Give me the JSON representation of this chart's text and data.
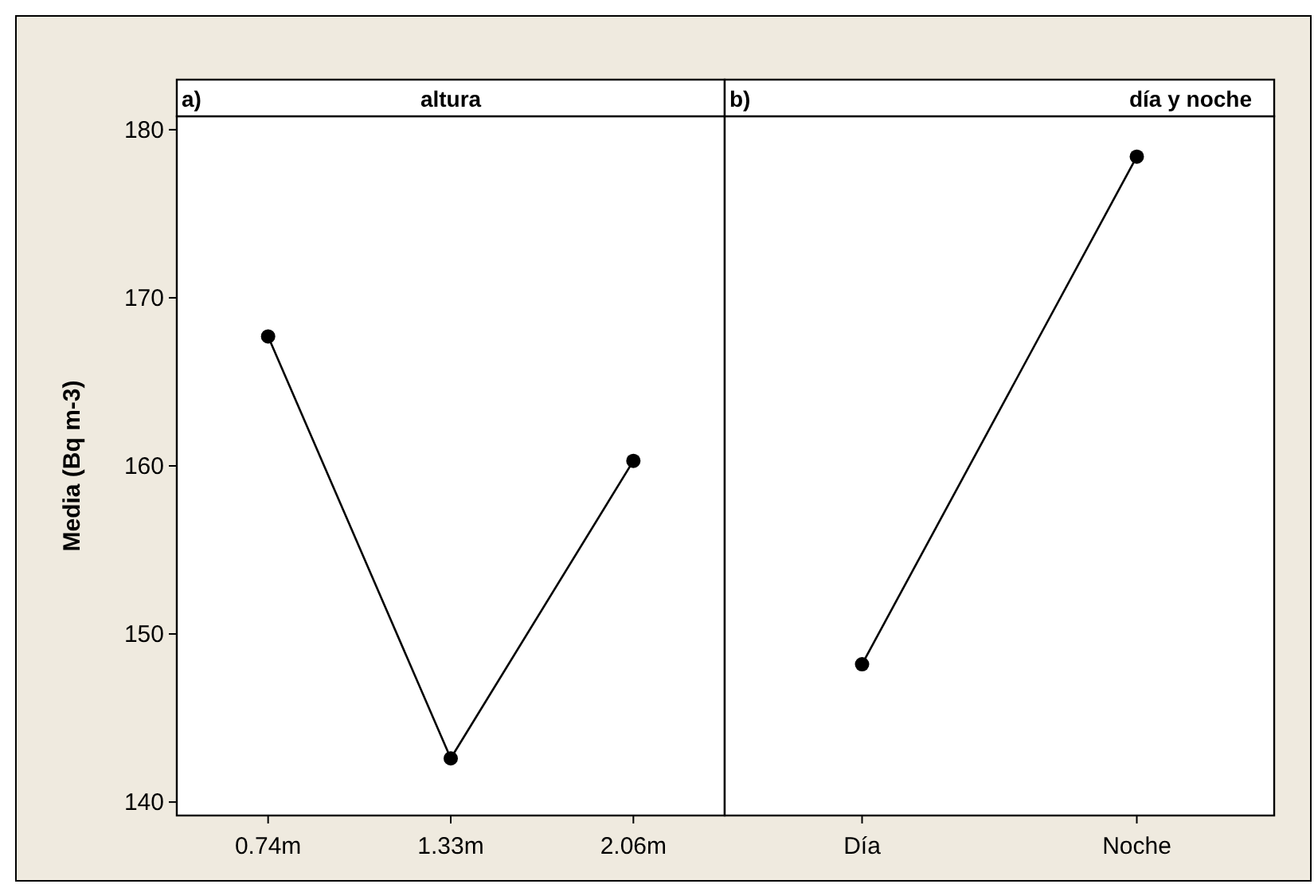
{
  "chart_data": [
    {
      "type": "line",
      "title": "altura",
      "annotations": [
        "a)"
      ],
      "ylabel": "Media (Bq m-3)",
      "categories": [
        "0.74m",
        "1.33m",
        "2.06m"
      ],
      "series": [
        {
          "color": "#000000",
          "values": [
            167.7,
            142.6,
            160.3
          ]
        }
      ],
      "ylim": [
        139.2,
        180.8
      ],
      "yticks": [
        140,
        150,
        160,
        170,
        180
      ],
      "marker": "circle",
      "grid": false
    },
    {
      "type": "line",
      "title": "día y noche",
      "annotations": [
        "b)"
      ],
      "categories": [
        "Día",
        "Noche"
      ],
      "series": [
        {
          "color": "#000000",
          "values": [
            148.2,
            178.4
          ]
        }
      ],
      "ylim": [
        139.2,
        180.8
      ],
      "yticks": [
        140,
        150,
        160,
        170,
        180
      ],
      "marker": "circle",
      "grid": false,
      "tick_labels": "x"
    }
  ]
}
